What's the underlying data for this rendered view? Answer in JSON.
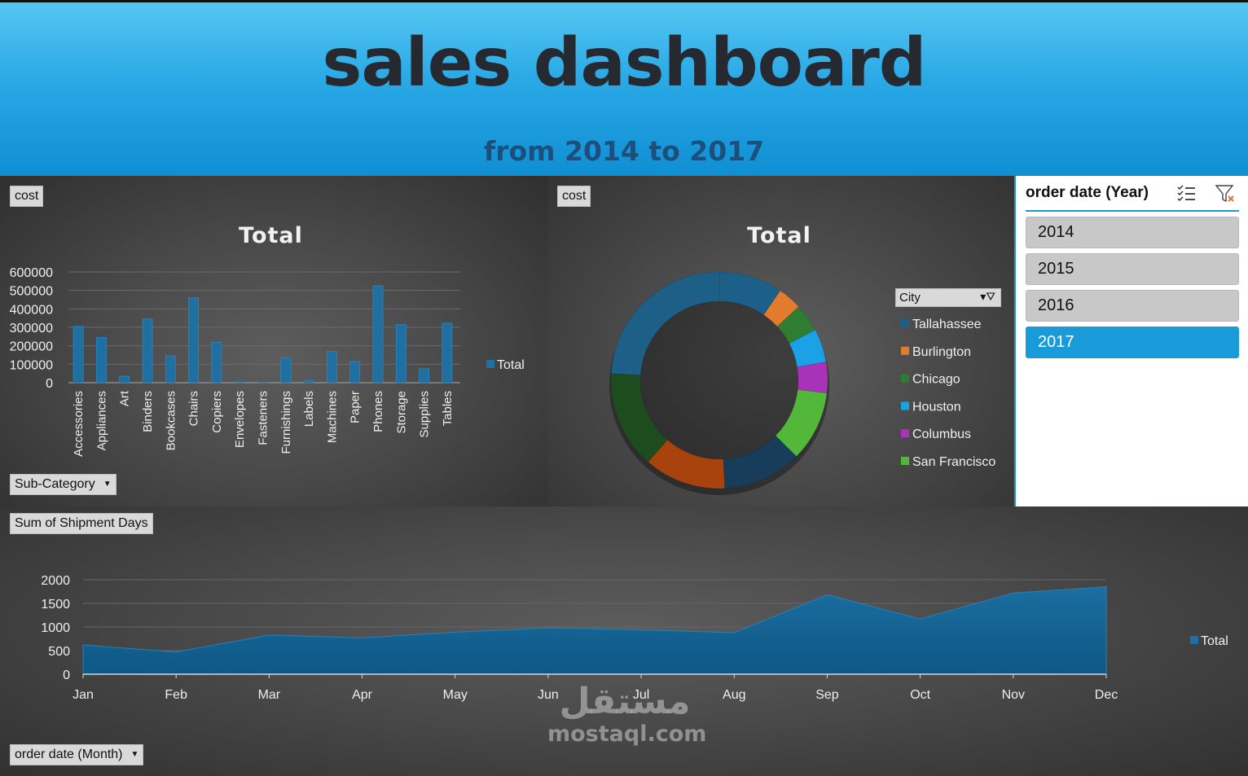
{
  "header": {
    "title": "sales dashboard",
    "subtitle": "from 2014 to 2017"
  },
  "bar_panel": {
    "field_button": "cost",
    "filter_button": "Sub-Category",
    "title": "Total",
    "legend": "Total"
  },
  "donut_panel": {
    "field_button": "cost",
    "title": "Total",
    "legend_field": "City",
    "legend_items": [
      "Tallahassee",
      "Burlington",
      "Chicago",
      "Houston",
      "Columbus",
      "San Francisco"
    ]
  },
  "slicer": {
    "title": "order date (Year)",
    "items": [
      "2014",
      "2015",
      "2016",
      "2017"
    ],
    "selected": "2017"
  },
  "area_panel": {
    "field_button": "Sum of Shipment Days",
    "filter_button": "order date (Month)",
    "legend": "Total"
  },
  "watermark": {
    "arabic": "مستقل",
    "latin": "mostaql.com"
  },
  "colors": {
    "accent": "#1a9bd9",
    "bar": "#1f6fa0",
    "area": "#135f90"
  },
  "chart_data": [
    {
      "type": "bar",
      "title": "Total",
      "categories": [
        "Accessories",
        "Appliances",
        "Art",
        "Binders",
        "Bookcases",
        "Chairs",
        "Copiers",
        "Envelopes",
        "Fasteners",
        "Furnishings",
        "Labels",
        "Machines",
        "Paper",
        "Phones",
        "Storage",
        "Supplies",
        "Tables"
      ],
      "series": [
        {
          "name": "Total",
          "values": [
            305000,
            245000,
            35000,
            345000,
            145000,
            460000,
            218000,
            4000,
            2000,
            133000,
            13000,
            170000,
            115000,
            525000,
            315000,
            75000,
            322000
          ]
        }
      ],
      "yticks": [
        "600000",
        "500000",
        "400000",
        "300000",
        "200000",
        "100000",
        "0"
      ],
      "ylim": [
        0,
        600000
      ],
      "grid": true,
      "legend": "right"
    },
    {
      "type": "pie",
      "title": "Total",
      "style": "donut",
      "legend_title": "City",
      "slices": [
        {
          "label": "",
          "value": 9.5,
          "color": "#1c5f88"
        },
        {
          "label": "",
          "value": 3.6,
          "color": "#e37b2f"
        },
        {
          "label": "",
          "value": 4.2,
          "color": "#2e7d32"
        },
        {
          "label": "",
          "value": 5.0,
          "color": "#1aa1e6"
        },
        {
          "label": "",
          "value": 4.6,
          "color": "#a833b9"
        },
        {
          "label": "",
          "value": 10.5,
          "color": "#53b83a"
        },
        {
          "label": "",
          "value": 11.8,
          "color": "#173d5a"
        },
        {
          "label": "",
          "value": 12.2,
          "color": "#a9430e"
        },
        {
          "label": "",
          "value": 14.6,
          "color": "#1d4d1e"
        },
        {
          "label": "",
          "value": 24.0,
          "color": "#1d5f87"
        }
      ],
      "legend": [
        "Tallahassee",
        "Burlington",
        "Chicago",
        "Houston",
        "Columbus",
        "San Francisco"
      ]
    },
    {
      "type": "area",
      "categories": [
        "Jan",
        "Feb",
        "Mar",
        "Apr",
        "May",
        "Jun",
        "Jul",
        "Aug",
        "Sep",
        "Oct",
        "Nov",
        "Dec"
      ],
      "series": [
        {
          "name": "Total",
          "values": [
            620,
            470,
            830,
            770,
            890,
            980,
            940,
            880,
            1680,
            1170,
            1720,
            1850
          ]
        }
      ],
      "yticks": [
        "2000",
        "1500",
        "1000",
        "500",
        "0"
      ],
      "ylim": [
        0,
        2000
      ],
      "grid": true,
      "legend": "right"
    }
  ]
}
